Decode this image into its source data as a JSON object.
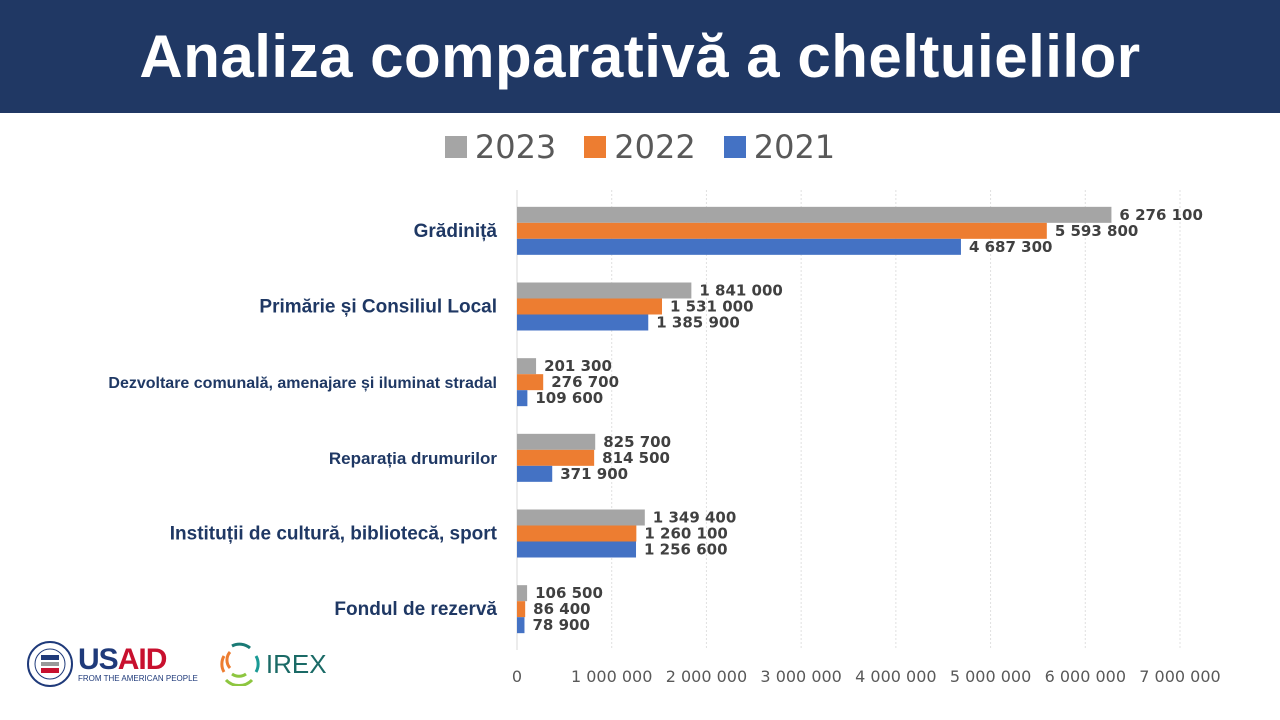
{
  "header": {
    "title": "Analiza comparativă a cheltuielilor"
  },
  "logos": {
    "usaid": "USAID",
    "usaid_tagline": "FROM THE AMERICAN PEOPLE",
    "irex": "IREX"
  },
  "chart_data": {
    "type": "bar",
    "orientation": "horizontal",
    "title": "Analiza comparativă a cheltuielilor",
    "categories": [
      "Grădiniță",
      "Primărie și Consiliul Local",
      "Dezvoltare comunală, amenajare și iluminat stradal",
      "Reparația drumurilor",
      "Instituții de cultură, bibliotecă, sport",
      "Fondul de rezervă"
    ],
    "series": [
      {
        "name": "2023",
        "color": "#a5a5a5",
        "values": [
          6276100,
          1841000,
          201300,
          825700,
          1349400,
          106500
        ],
        "labels": [
          "6 276 100",
          "1 841 000",
          "201 300",
          "825 700",
          "1 349 400",
          "106 500"
        ]
      },
      {
        "name": "2022",
        "color": "#ed7d31",
        "values": [
          5593800,
          1531000,
          276700,
          814500,
          1260100,
          86400
        ],
        "labels": [
          "5 593 800",
          "1 531 000",
          "276 700",
          "814 500",
          "1 260 100",
          "86 400"
        ]
      },
      {
        "name": "2021",
        "color": "#4472c4",
        "values": [
          4687300,
          1385900,
          109600,
          371900,
          1256600,
          78900
        ],
        "labels": [
          "4 687 300",
          "1 385 900",
          "109 600",
          "371 900",
          "1 256 600",
          "78 900"
        ]
      }
    ],
    "xlim": [
      0,
      7000000
    ],
    "xticks": [
      0,
      1000000,
      2000000,
      3000000,
      4000000,
      5000000,
      6000000,
      7000000
    ],
    "xtick_labels": [
      "0",
      "1 000 000",
      "2 000 000",
      "3 000 000",
      "4 000 000",
      "5 000 000",
      "6 000 000",
      "7 000 000"
    ],
    "grid": true,
    "legend": "top"
  }
}
